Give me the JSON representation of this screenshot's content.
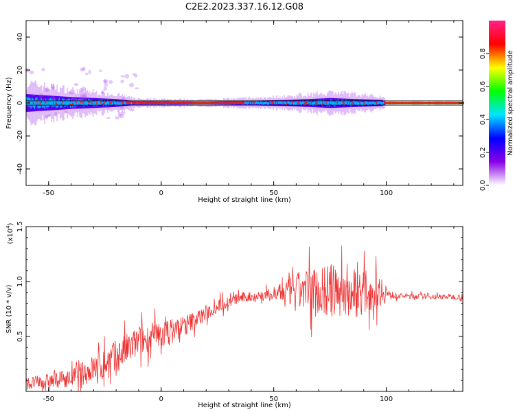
{
  "title": "C2E2.2023.337.16.12.G08",
  "chart_data": [
    {
      "type": "heatmap",
      "xlabel": "Height of straight line (km)",
      "ylabel": "Frequency (Hz)",
      "xlim": [
        -60,
        134
      ],
      "ylim": [
        -50,
        50
      ],
      "xticks": [
        -50,
        0,
        50,
        100
      ],
      "yticks": [
        -40,
        -20,
        0,
        20,
        40
      ],
      "colorbar": {
        "label": "Normalized spectral amplitude",
        "range": [
          0,
          1
        ],
        "ticks": [
          "0.0",
          "0.2",
          "0.4",
          "0.6",
          "0.8"
        ],
        "tick_values": [
          0,
          0.2,
          0.4,
          0.6,
          0.8
        ],
        "colors": [
          "#ffffff",
          "#8a00e6",
          "#0000ff",
          "#00e5ff",
          "#00ff00",
          "#ffff00",
          "#ff0000",
          "#ff2288"
        ]
      },
      "band": {
        "spread_profile": [
          {
            "x": -60,
            "spread": 9
          },
          {
            "x": -40,
            "spread": 6
          },
          {
            "x": -20,
            "spread": 4
          },
          {
            "x": -12,
            "spread": 2
          },
          {
            "x": 20,
            "spread": 1.5
          },
          {
            "x": 55,
            "spread": 3
          },
          {
            "x": 75,
            "spread": 5
          },
          {
            "x": 98,
            "spread": 3
          },
          {
            "x": 100,
            "spread": 0.8
          },
          {
            "x": 134,
            "spread": 0.8
          }
        ],
        "center_hz": 0
      }
    },
    {
      "type": "line",
      "xlabel": "Height of straight line (km)",
      "ylabel": "SNR (10 * v/v)",
      "yscale_label": "(x10",
      "yscale_exp": "4",
      "yscale_close": ")",
      "xlim": [
        -60,
        134
      ],
      "ylim": [
        0,
        1.5
      ],
      "xticks": [
        -50,
        0,
        50,
        100
      ],
      "yticks": [
        "0.5",
        "1.0",
        "1.5"
      ],
      "ytick_values": [
        0.5,
        1.0,
        1.5
      ],
      "color": "#ee3333",
      "series": [
        {
          "trend": [
            {
              "x": -60,
              "y": 0.07,
              "noise": 0.07
            },
            {
              "x": -40,
              "y": 0.12,
              "noise": 0.1
            },
            {
              "x": -25,
              "y": 0.25,
              "noise": 0.2
            },
            {
              "x": -10,
              "y": 0.45,
              "noise": 0.18
            },
            {
              "x": 5,
              "y": 0.55,
              "noise": 0.15
            },
            {
              "x": 15,
              "y": 0.65,
              "noise": 0.1
            },
            {
              "x": 25,
              "y": 0.78,
              "noise": 0.08
            },
            {
              "x": 35,
              "y": 0.85,
              "noise": 0.06
            },
            {
              "x": 50,
              "y": 0.88,
              "noise": 0.07
            },
            {
              "x": 60,
              "y": 0.92,
              "noise": 0.2
            },
            {
              "x": 70,
              "y": 0.92,
              "noise": 0.32
            },
            {
              "x": 85,
              "y": 0.9,
              "noise": 0.3
            },
            {
              "x": 98,
              "y": 0.92,
              "noise": 0.18
            },
            {
              "x": 102,
              "y": 0.87,
              "noise": 0.03
            },
            {
              "x": 134,
              "y": 0.86,
              "noise": 0.03
            }
          ]
        }
      ]
    }
  ]
}
